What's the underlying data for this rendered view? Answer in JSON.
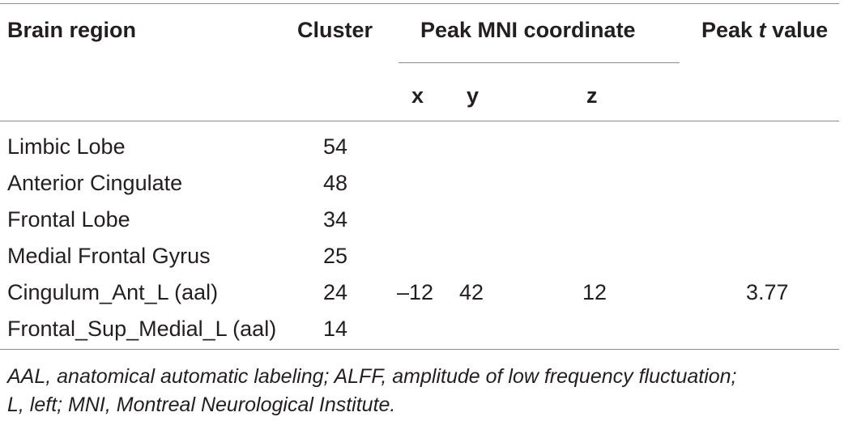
{
  "table": {
    "headers": {
      "brain_region": "Brain region",
      "cluster": "Cluster",
      "peak_mni": "Peak MNI coordinate",
      "peak_t_prefix": "Peak ",
      "peak_t_italic": "t",
      "peak_t_suffix": " value",
      "x": "x",
      "y": "y",
      "z": "z"
    },
    "rows": [
      {
        "region": "Limbic Lobe",
        "cluster": "54",
        "x": "",
        "y": "",
        "z": "",
        "t": ""
      },
      {
        "region": "Anterior Cingulate",
        "cluster": "48",
        "x": "",
        "y": "",
        "z": "",
        "t": ""
      },
      {
        "region": "Frontal Lobe",
        "cluster": "34",
        "x": "",
        "y": "",
        "z": "",
        "t": ""
      },
      {
        "region": "Medial Frontal Gyrus",
        "cluster": "25",
        "x": "",
        "y": "",
        "z": "",
        "t": ""
      },
      {
        "region": "Cingulum_Ant_L (aal)",
        "cluster": "24",
        "x": "–12",
        "y": "42",
        "z": "12",
        "t": "3.77"
      },
      {
        "region": "Frontal_Sup_Medial_L (aal)",
        "cluster": "14",
        "x": "",
        "y": "",
        "z": "",
        "t": ""
      }
    ]
  },
  "footnote": {
    "line1": "AAL, anatomical automatic labeling; ALFF, amplitude of low frequency fluctuation;",
    "line2": "L, left; MNI, Montreal Neurological Institute."
  }
}
